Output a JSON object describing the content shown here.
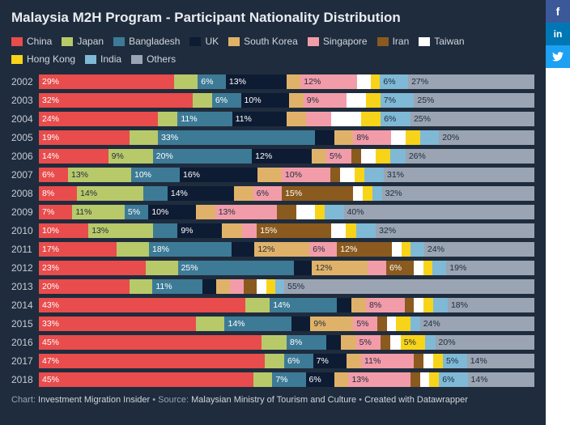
{
  "title": "Malaysia M2H Program - Participant Nationality Distribution",
  "footer": {
    "prefix": "Chart: ",
    "chart_by": "Investment Migration Insider",
    "sep1": " • Source: ",
    "source": "Malaysian Ministry of Tourism and Culture",
    "sep2": " • ",
    "created": "Created with Datawrapper"
  },
  "social": {
    "facebook": "f",
    "linkedin": "in",
    "twitter": "🐦"
  },
  "series": [
    {
      "key": "china",
      "label": "China",
      "color": "#e84c4c",
      "dark_text": false
    },
    {
      "key": "japan",
      "label": "Japan",
      "color": "#b8c96a",
      "dark_text": true
    },
    {
      "key": "bangladesh",
      "label": "Bangladesh",
      "color": "#3d7a96",
      "dark_text": false
    },
    {
      "key": "uk",
      "label": "UK",
      "color": "#0d1b33",
      "dark_text": false
    },
    {
      "key": "skorea",
      "label": "South Korea",
      "color": "#e0b269",
      "dark_text": true
    },
    {
      "key": "singapore",
      "label": "Singapore",
      "color": "#f29ca9",
      "dark_text": true
    },
    {
      "key": "iran",
      "label": "Iran",
      "color": "#8a5a1f",
      "dark_text": false
    },
    {
      "key": "taiwan",
      "label": "Taiwan",
      "color": "#ffffff",
      "dark_text": true
    },
    {
      "key": "hongkong",
      "label": "Hong Kong",
      "color": "#f7d41a",
      "dark_text": true
    },
    {
      "key": "india",
      "label": "India",
      "color": "#7fb9d6",
      "dark_text": true
    },
    {
      "key": "others",
      "label": "Others",
      "color": "#9aa4b2",
      "dark_text": true
    }
  ],
  "years": [
    {
      "year": "2002",
      "values": {
        "china": 29,
        "japan": 5,
        "bangladesh": 6,
        "uk": 13,
        "skorea": 3,
        "singapore": 12,
        "iran": 0,
        "taiwan": 3,
        "hongkong": 2,
        "india": 6,
        "others": 27
      },
      "labels": {
        "china": "29%",
        "bangladesh": "6%",
        "uk": "13%",
        "singapore": "12%",
        "india": "6%",
        "others": "27%"
      }
    },
    {
      "year": "2003",
      "values": {
        "china": 32,
        "japan": 4,
        "bangladesh": 6,
        "uk": 10,
        "skorea": 3,
        "singapore": 9,
        "iran": 0,
        "taiwan": 4,
        "hongkong": 3,
        "india": 7,
        "others": 25
      },
      "labels": {
        "china": "32%",
        "bangladesh": "6%",
        "uk": "10%",
        "singapore": "9%",
        "india": "7%",
        "others": "25%"
      }
    },
    {
      "year": "2004",
      "values": {
        "china": 24,
        "japan": 4,
        "bangladesh": 11,
        "uk": 11,
        "skorea": 4,
        "singapore": 5,
        "iran": 0,
        "taiwan": 6,
        "hongkong": 4,
        "india": 6,
        "others": 25
      },
      "labels": {
        "china": "24%",
        "bangladesh": "11%",
        "uk": "11%",
        "india": "6%",
        "others": "25%"
      }
    },
    {
      "year": "2005",
      "values": {
        "china": 19,
        "japan": 6,
        "bangladesh": 33,
        "uk": 4,
        "skorea": 4,
        "singapore": 8,
        "iran": 0,
        "taiwan": 3,
        "hongkong": 3,
        "india": 4,
        "others": 20
      },
      "labels": {
        "china": "19%",
        "bangladesh": "33%",
        "singapore": "8%",
        "others": "20%"
      }
    },
    {
      "year": "2006",
      "values": {
        "china": 14,
        "japan": 9,
        "bangladesh": 20,
        "uk": 12,
        "skorea": 3,
        "singapore": 5,
        "iran": 2,
        "taiwan": 3,
        "hongkong": 3,
        "india": 3,
        "others": 26
      },
      "labels": {
        "china": "14%",
        "japan": "9%",
        "bangladesh": "20%",
        "uk": "12%",
        "singapore": "5%",
        "others": "26%"
      }
    },
    {
      "year": "2007",
      "values": {
        "china": 6,
        "japan": 13,
        "bangladesh": 10,
        "uk": 16,
        "skorea": 5,
        "singapore": 10,
        "iran": 2,
        "taiwan": 3,
        "hongkong": 2,
        "india": 4,
        "others": 31
      },
      "labels": {
        "china": "6%",
        "japan": "13%",
        "bangladesh": "10%",
        "uk": "16%",
        "singapore": "10%",
        "others": "31%"
      }
    },
    {
      "year": "2008",
      "values": {
        "china": 8,
        "japan": 14,
        "bangladesh": 5,
        "uk": 14,
        "skorea": 4,
        "singapore": 6,
        "iran": 15,
        "taiwan": 2,
        "hongkong": 2,
        "india": 2,
        "others": 32
      },
      "labels": {
        "china": "8%",
        "japan": "14%",
        "uk": "14%",
        "singapore": "6%",
        "iran": "15%",
        "others": "32%"
      }
    },
    {
      "year": "2009",
      "values": {
        "china": 7,
        "japan": 11,
        "bangladesh": 5,
        "uk": 10,
        "skorea": 4,
        "singapore": 13,
        "iran": 4,
        "taiwan": 4,
        "hongkong": 2,
        "india": 4,
        "others": 40
      },
      "labels": {
        "china": "7%",
        "japan": "11%",
        "bangladesh": "5%",
        "uk": "10%",
        "singapore": "13%",
        "others": "40%"
      }
    },
    {
      "year": "2010",
      "values": {
        "china": 10,
        "japan": 13,
        "bangladesh": 5,
        "uk": 9,
        "skorea": 4,
        "singapore": 3,
        "iran": 15,
        "taiwan": 3,
        "hongkong": 2,
        "india": 4,
        "others": 32
      },
      "labels": {
        "china": "10%",
        "japan": "13%",
        "uk": "9%",
        "iran": "15%",
        "others": "32%"
      }
    },
    {
      "year": "2011",
      "values": {
        "china": 17,
        "japan": 7,
        "bangladesh": 18,
        "uk": 5,
        "skorea": 12,
        "singapore": 6,
        "iran": 12,
        "taiwan": 2,
        "hongkong": 2,
        "india": 3,
        "others": 24
      },
      "labels": {
        "china": "17%",
        "bangladesh": "18%",
        "skorea": "12%",
        "singapore": "6%",
        "iran": "12%",
        "others": "24%"
      }
    },
    {
      "year": "2012",
      "values": {
        "china": 23,
        "japan": 7,
        "bangladesh": 25,
        "uk": 4,
        "skorea": 12,
        "singapore": 4,
        "iran": 6,
        "taiwan": 2,
        "hongkong": 2,
        "india": 3,
        "others": 19
      },
      "labels": {
        "china": "23%",
        "bangladesh": "25%",
        "skorea": "12%",
        "iran": "6%",
        "others": "19%"
      }
    },
    {
      "year": "2013",
      "values": {
        "china": 20,
        "japan": 5,
        "bangladesh": 11,
        "uk": 3,
        "skorea": 3,
        "singapore": 3,
        "iran": 3,
        "taiwan": 2,
        "hongkong": 2,
        "india": 2,
        "others": 55
      },
      "labels": {
        "china": "20%",
        "bangladesh": "11%",
        "others": "55%"
      }
    },
    {
      "year": "2014",
      "values": {
        "china": 43,
        "japan": 5,
        "bangladesh": 14,
        "uk": 3,
        "skorea": 3,
        "singapore": 8,
        "iran": 2,
        "taiwan": 2,
        "hongkong": 2,
        "india": 3,
        "others": 18
      },
      "labels": {
        "china": "43%",
        "bangladesh": "14%",
        "singapore": "8%",
        "others": "18%"
      }
    },
    {
      "year": "2015",
      "values": {
        "china": 33,
        "japan": 6,
        "bangladesh": 14,
        "uk": 4,
        "skorea": 9,
        "singapore": 5,
        "iran": 2,
        "taiwan": 2,
        "hongkong": 3,
        "india": 2,
        "others": 24
      },
      "labels": {
        "china": "33%",
        "bangladesh": "14%",
        "skorea": "9%",
        "singapore": "5%",
        "others": "24%"
      }
    },
    {
      "year": "2016",
      "values": {
        "china": 45,
        "japan": 5,
        "bangladesh": 8,
        "uk": 3,
        "skorea": 3,
        "singapore": 5,
        "iran": 2,
        "taiwan": 2,
        "hongkong": 5,
        "india": 2,
        "others": 20
      },
      "labels": {
        "china": "45%",
        "bangladesh": "8%",
        "singapore": "5%",
        "hongkong": "5%",
        "others": "20%"
      }
    },
    {
      "year": "2017",
      "values": {
        "china": 47,
        "japan": 4,
        "bangladesh": 6,
        "uk": 7,
        "skorea": 3,
        "singapore": 11,
        "iran": 2,
        "taiwan": 2,
        "hongkong": 2,
        "india": 5,
        "others": 14
      },
      "labels": {
        "china": "47%",
        "bangladesh": "6%",
        "uk": "7%",
        "singapore": "11%",
        "india": "5%",
        "others": "14%"
      }
    },
    {
      "year": "2018",
      "values": {
        "china": 45,
        "japan": 4,
        "bangladesh": 7,
        "uk": 6,
        "skorea": 3,
        "singapore": 13,
        "iran": 2,
        "taiwan": 2,
        "hongkong": 2,
        "india": 6,
        "others": 14
      },
      "labels": {
        "china": "45%",
        "bangladesh": "7%",
        "uk": "6%",
        "singapore": "13%",
        "india": "6%",
        "others": "14%"
      }
    }
  ]
}
